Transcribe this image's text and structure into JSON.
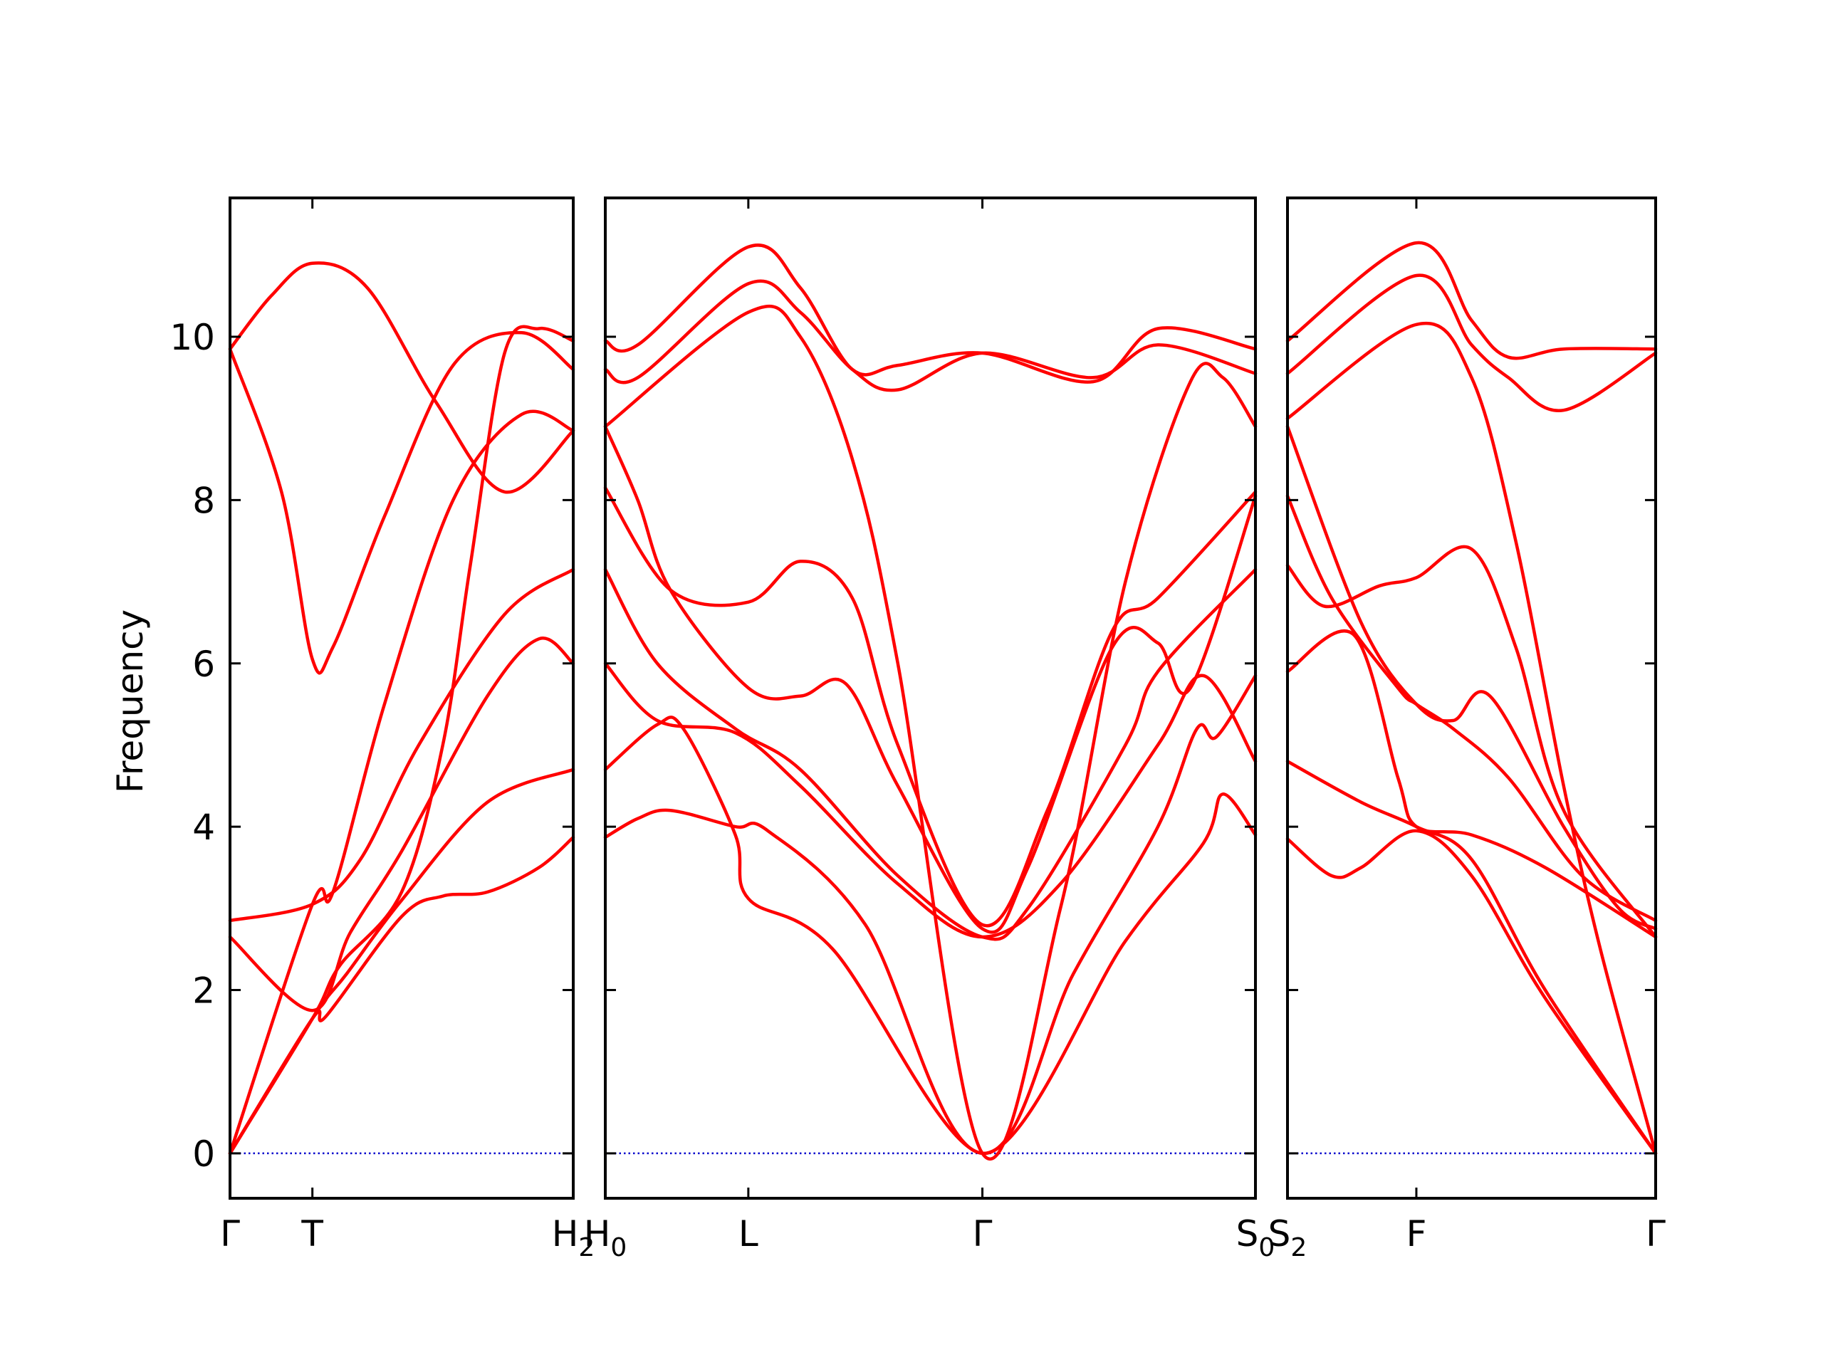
{
  "chart_data": {
    "type": "line",
    "title": "",
    "ylabel": "Frequency",
    "xlabel": "",
    "ylim": [
      -0.55,
      11.7
    ],
    "yticks": [
      0,
      2,
      4,
      6,
      8,
      10
    ],
    "grid": false,
    "legend": "none",
    "line_color": "#ff0000",
    "zero_line_color": "#0000cc",
    "panels": [
      {
        "name": "Γ-T-H2",
        "xrange": [
          0,
          1
        ],
        "ticks": [
          {
            "x": 0,
            "label": "Γ",
            "sub": ""
          },
          {
            "x": 0.24,
            "label": "T",
            "sub": ""
          },
          {
            "x": 1,
            "label": "H",
            "sub": "2"
          }
        ],
        "bands": [
          [
            [
              0,
              0
            ],
            [
              0.24,
              1.65
            ],
            [
              0.28,
              1.68
            ],
            [
              0.5,
              2.9
            ],
            [
              0.62,
              3.15
            ],
            [
              0.75,
              3.2
            ],
            [
              0.9,
              3.5
            ],
            [
              1,
              3.87
            ]
          ],
          [
            [
              0,
              0
            ],
            [
              0.24,
              1.65
            ],
            [
              0.34,
              2.2
            ],
            [
              0.5,
              3.1
            ],
            [
              0.75,
              4.3
            ],
            [
              1,
              4.7
            ]
          ],
          [
            [
              0,
              2.65
            ],
            [
              0.24,
              1.75
            ],
            [
              0.35,
              2.7
            ],
            [
              0.5,
              3.7
            ],
            [
              0.75,
              5.6
            ],
            [
              0.9,
              6.3
            ],
            [
              1,
              6.0
            ]
          ],
          [
            [
              0,
              2.85
            ],
            [
              0.24,
              3.05
            ],
            [
              0.38,
              3.6
            ],
            [
              0.55,
              5.0
            ],
            [
              0.8,
              6.6
            ],
            [
              1,
              7.15
            ]
          ],
          [
            [
              0,
              0
            ],
            [
              0.24,
              3.05
            ],
            [
              0.3,
              3.2
            ],
            [
              0.45,
              5.5
            ],
            [
              0.65,
              8.0
            ],
            [
              0.85,
              9.05
            ],
            [
              1,
              8.85
            ]
          ],
          [
            [
              0,
              9.85
            ],
            [
              0.15,
              8.1
            ],
            [
              0.24,
              6.05
            ],
            [
              0.3,
              6.2
            ],
            [
              0.45,
              7.8
            ],
            [
              0.65,
              9.65
            ],
            [
              0.85,
              10.05
            ],
            [
              1,
              9.6
            ]
          ],
          [
            [
              0,
              9.85
            ],
            [
              0.12,
              10.5
            ],
            [
              0.24,
              10.9
            ],
            [
              0.4,
              10.6
            ],
            [
              0.6,
              9.2
            ],
            [
              0.8,
              8.1
            ],
            [
              1,
              8.85
            ]
          ],
          [
            [
              0,
              0
            ],
            [
              0.24,
              1.65
            ],
            [
              0.32,
              2.3
            ],
            [
              0.5,
              3.2
            ],
            [
              0.62,
              5.0
            ],
            [
              0.7,
              7.2
            ],
            [
              0.8,
              9.8
            ],
            [
              0.9,
              10.1
            ],
            [
              1,
              9.95
            ]
          ]
        ]
      },
      {
        "name": "H0-L-Γ-S0",
        "xrange": [
          0,
          1
        ],
        "ticks": [
          {
            "x": 0,
            "label": "H",
            "sub": "0"
          },
          {
            "x": 0.22,
            "label": "L",
            "sub": ""
          },
          {
            "x": 0.58,
            "label": "Γ",
            "sub": ""
          },
          {
            "x": 1,
            "label": "S",
            "sub": "0"
          }
        ],
        "bands": [
          [
            [
              0,
              3.87
            ],
            [
              0.05,
              4.1
            ],
            [
              0.1,
              4.2
            ],
            [
              0.2,
              4.0
            ],
            [
              0.25,
              3.95
            ],
            [
              0.4,
              2.8
            ],
            [
              0.58,
              0
            ],
            [
              0.8,
              2.6
            ],
            [
              0.92,
              3.8
            ],
            [
              0.95,
              4.4
            ],
            [
              1,
              3.9
            ]
          ],
          [
            [
              0,
              4.7
            ],
            [
              0.08,
              5.25
            ],
            [
              0.12,
              5.2
            ],
            [
              0.2,
              3.9
            ],
            [
              0.22,
              3.12
            ],
            [
              0.35,
              2.5
            ],
            [
              0.58,
              0
            ],
            [
              0.72,
              2.2
            ],
            [
              0.85,
              4.0
            ],
            [
              0.91,
              5.2
            ],
            [
              0.94,
              5.1
            ],
            [
              1,
              5.85
            ]
          ],
          [
            [
              0,
              6.0
            ],
            [
              0.08,
              5.3
            ],
            [
              0.2,
              5.15
            ],
            [
              0.3,
              4.5
            ],
            [
              0.45,
              3.3
            ],
            [
              0.58,
              2.65
            ],
            [
              0.7,
              3.3
            ],
            [
              0.85,
              5.0
            ],
            [
              0.92,
              5.85
            ],
            [
              1,
              4.8
            ]
          ],
          [
            [
              0,
              7.15
            ],
            [
              0.08,
              6.0
            ],
            [
              0.2,
              5.2
            ],
            [
              0.3,
              4.7
            ],
            [
              0.45,
              3.4
            ],
            [
              0.58,
              2.65
            ],
            [
              0.65,
              3.0
            ],
            [
              0.8,
              5.0
            ],
            [
              0.85,
              5.9
            ],
            [
              1,
              7.15
            ]
          ],
          [
            [
              0,
              8.9
            ],
            [
              0.05,
              8.0
            ],
            [
              0.1,
              6.9
            ],
            [
              0.22,
              5.7
            ],
            [
              0.3,
              5.6
            ],
            [
              0.37,
              5.75
            ],
            [
              0.45,
              4.5
            ],
            [
              0.58,
              2.75
            ],
            [
              0.65,
              3.5
            ],
            [
              0.78,
              6.2
            ],
            [
              0.85,
              6.25
            ],
            [
              0.9,
              5.7
            ],
            [
              1,
              8.05
            ]
          ],
          [
            [
              0,
              8.15
            ],
            [
              0.1,
              6.9
            ],
            [
              0.22,
              6.75
            ],
            [
              0.3,
              7.25
            ],
            [
              0.38,
              6.8
            ],
            [
              0.45,
              5.0
            ],
            [
              0.58,
              2.8
            ],
            [
              0.68,
              4.2
            ],
            [
              0.78,
              6.4
            ],
            [
              0.85,
              6.8
            ],
            [
              1,
              8.1
            ]
          ],
          [
            [
              0,
              8.9
            ],
            [
              0.22,
              10.3
            ],
            [
              0.3,
              10.0
            ],
            [
              0.38,
              8.5
            ],
            [
              0.45,
              6.0
            ],
            [
              0.58,
              0
            ],
            [
              0.7,
              3.0
            ],
            [
              0.8,
              7.0
            ],
            [
              0.9,
              9.45
            ],
            [
              0.95,
              9.5
            ],
            [
              1,
              8.9
            ]
          ],
          [
            [
              0,
              9.6
            ],
            [
              0.05,
              9.5
            ],
            [
              0.22,
              10.65
            ],
            [
              0.3,
              10.3
            ],
            [
              0.38,
              9.6
            ],
            [
              0.45,
              9.35
            ],
            [
              0.58,
              9.8
            ],
            [
              0.75,
              9.5
            ],
            [
              0.85,
              9.9
            ],
            [
              1,
              9.55
            ]
          ],
          [
            [
              0,
              9.95
            ],
            [
              0.05,
              9.9
            ],
            [
              0.22,
              11.1
            ],
            [
              0.3,
              10.6
            ],
            [
              0.38,
              9.6
            ],
            [
              0.45,
              9.65
            ],
            [
              0.58,
              9.8
            ],
            [
              0.75,
              9.45
            ],
            [
              0.85,
              10.1
            ],
            [
              1,
              9.85
            ]
          ]
        ]
      },
      {
        "name": "S2-F-Γ",
        "xrange": [
          0,
          1
        ],
        "ticks": [
          {
            "x": 0,
            "label": "S",
            "sub": "2"
          },
          {
            "x": 0.35,
            "label": "F",
            "sub": ""
          },
          {
            "x": 1,
            "label": "Γ",
            "sub": ""
          }
        ],
        "bands": [
          [
            [
              0,
              3.85
            ],
            [
              0.12,
              3.4
            ],
            [
              0.2,
              3.5
            ],
            [
              0.35,
              3.95
            ],
            [
              0.5,
              3.4
            ],
            [
              0.7,
              1.9
            ],
            [
              1,
              0
            ]
          ],
          [
            [
              0,
              4.8
            ],
            [
              0.2,
              4.3
            ],
            [
              0.35,
              4.0
            ],
            [
              0.5,
              3.6
            ],
            [
              0.7,
              2.0
            ],
            [
              1,
              0
            ]
          ],
          [
            [
              0,
              5.9
            ],
            [
              0.18,
              6.35
            ],
            [
              0.3,
              4.6
            ],
            [
              0.35,
              4.0
            ],
            [
              0.5,
              3.9
            ],
            [
              0.7,
              3.5
            ],
            [
              1,
              2.65
            ]
          ],
          [
            [
              0,
              7.2
            ],
            [
              0.1,
              6.7
            ],
            [
              0.25,
              6.95
            ],
            [
              0.35,
              7.05
            ],
            [
              0.5,
              7.4
            ],
            [
              0.62,
              6.2
            ],
            [
              0.75,
              4.2
            ],
            [
              1,
              2.65
            ]
          ],
          [
            [
              0,
              8.05
            ],
            [
              0.12,
              6.8
            ],
            [
              0.3,
              5.7
            ],
            [
              0.35,
              5.5
            ],
            [
              0.45,
              5.2
            ],
            [
              0.6,
              4.6
            ],
            [
              0.8,
              3.4
            ],
            [
              1,
              2.85
            ]
          ],
          [
            [
              0,
              8.9
            ],
            [
              0.2,
              6.5
            ],
            [
              0.35,
              5.5
            ],
            [
              0.45,
              5.3
            ],
            [
              0.55,
              5.6
            ],
            [
              0.75,
              4.0
            ],
            [
              0.9,
              3.0
            ],
            [
              1,
              2.75
            ]
          ],
          [
            [
              0,
              9.0
            ],
            [
              0.35,
              10.15
            ],
            [
              0.5,
              9.5
            ],
            [
              0.62,
              7.5
            ],
            [
              0.75,
              4.5
            ],
            [
              0.85,
              2.5
            ],
            [
              1,
              0
            ]
          ],
          [
            [
              0,
              9.55
            ],
            [
              0.35,
              10.75
            ],
            [
              0.5,
              9.9
            ],
            [
              0.6,
              9.5
            ],
            [
              0.75,
              9.1
            ],
            [
              1,
              9.8
            ]
          ],
          [
            [
              0,
              9.95
            ],
            [
              0.35,
              11.15
            ],
            [
              0.5,
              10.2
            ],
            [
              0.6,
              9.75
            ],
            [
              0.75,
              9.85
            ],
            [
              1,
              9.85
            ]
          ]
        ]
      }
    ]
  }
}
